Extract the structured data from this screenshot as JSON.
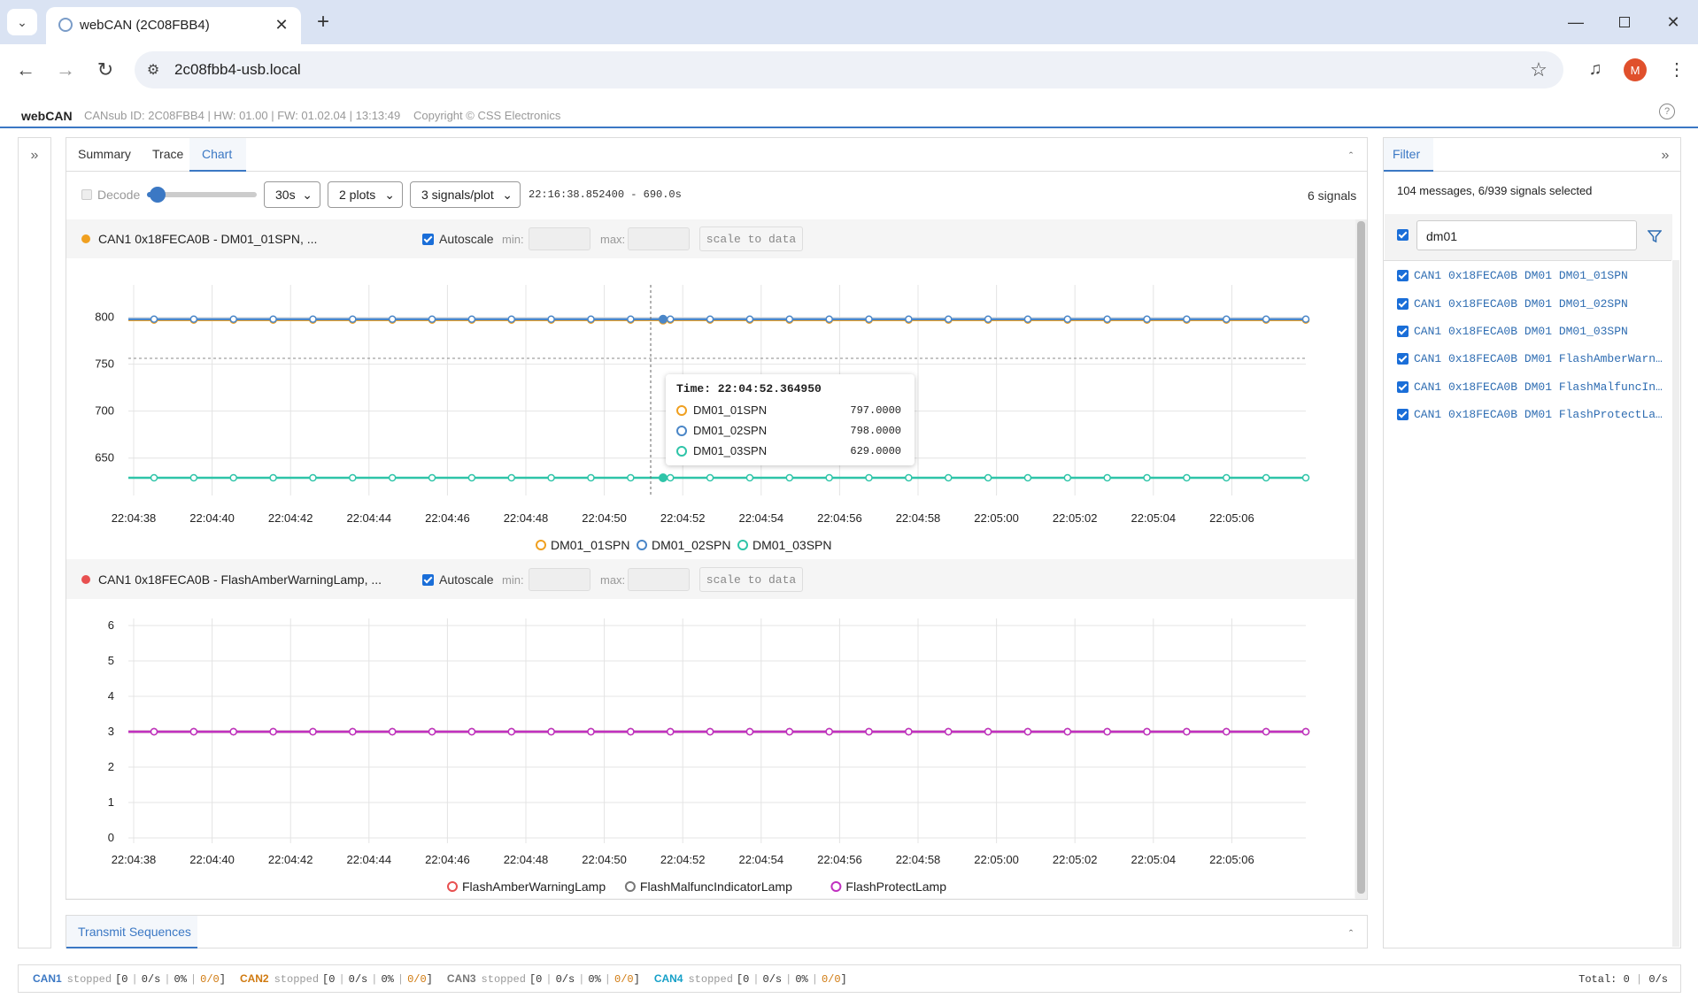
{
  "browser": {
    "tab_title": "webCAN (2C08FBB4)",
    "url": "2c08fbb4-usb.local",
    "profile_initial": "M"
  },
  "app": {
    "name": "webCAN",
    "info": "CANsub ID: 2C08FBB4 | HW: 01.00 | FW: 01.02.04 | 13:13:49",
    "copyright": "Copyright © CSS Electronics"
  },
  "tabs": [
    "Summary",
    "Trace",
    "Chart"
  ],
  "active_tab": "Chart",
  "controls": {
    "decode_label": "Decode",
    "window": "30s",
    "plots": "2 plots",
    "signals_per_plot": "3 signals/plot",
    "timestamp": "22:16:38.852400 - 690.0s",
    "signal_count": "6 signals"
  },
  "plot_controls": {
    "autoscale_label": "Autoscale",
    "min_label": "min:",
    "max_label": "max:",
    "scale_btn": "scale to data"
  },
  "colors": {
    "accent": "#3b78c4",
    "orange": "#f0a020",
    "blue": "#4a86c8",
    "teal": "#2ec4a8",
    "red": "#e85050",
    "gray": "#777777",
    "purple": "#c030c0"
  },
  "chart_data": [
    {
      "type": "line",
      "title": "CAN1 0x18FECA0B - DM01_01SPN, ...",
      "x": [
        "22:04:38",
        "22:04:40",
        "22:04:42",
        "22:04:44",
        "22:04:46",
        "22:04:48",
        "22:04:50",
        "22:04:52",
        "22:04:54",
        "22:04:56",
        "22:04:58",
        "22:05:00",
        "22:05:02",
        "22:05:04",
        "22:05:06"
      ],
      "yticks": [
        800,
        750,
        700,
        650
      ],
      "ylim": [
        629,
        810
      ],
      "series": [
        {
          "name": "DM01_01SPN",
          "value": 797,
          "color": "#f0a020"
        },
        {
          "name": "DM01_02SPN",
          "value": 798,
          "color": "#4a86c8"
        },
        {
          "name": "DM01_03SPN",
          "value": 629,
          "color": "#2ec4a8"
        }
      ],
      "tooltip": {
        "time": "Time: 22:04:52.364950",
        "rows": [
          {
            "name": "DM01_01SPN",
            "value": "797.0000",
            "color": "#f0a020"
          },
          {
            "name": "DM01_02SPN",
            "value": "798.0000",
            "color": "#4a86c8"
          },
          {
            "name": "DM01_03SPN",
            "value": "629.0000",
            "color": "#2ec4a8"
          }
        ]
      }
    },
    {
      "type": "line",
      "title": "CAN1 0x18FECA0B - FlashAmberWarningLamp, ...",
      "x": [
        "22:04:38",
        "22:04:40",
        "22:04:42",
        "22:04:44",
        "22:04:46",
        "22:04:48",
        "22:04:50",
        "22:04:52",
        "22:04:54",
        "22:04:56",
        "22:04:58",
        "22:05:00",
        "22:05:02",
        "22:05:04",
        "22:05:06"
      ],
      "yticks": [
        6,
        5,
        4,
        3,
        2,
        1,
        0
      ],
      "ylim": [
        0,
        6
      ],
      "series": [
        {
          "name": "FlashAmberWarningLamp",
          "value": 3,
          "color": "#e85050"
        },
        {
          "name": "FlashMalfuncIndicatorLamp",
          "value": 3,
          "color": "#777777"
        },
        {
          "name": "FlashProtectLamp",
          "value": 3,
          "color": "#c030c0"
        }
      ]
    }
  ],
  "filter": {
    "tab": "Filter",
    "summary": "104 messages, 6/939 signals selected",
    "query": "dm01",
    "signals": [
      "CAN1 0x18FECA0B DM01 DM01_01SPN",
      "CAN1 0x18FECA0B DM01 DM01_02SPN",
      "CAN1 0x18FECA0B DM01 DM01_03SPN",
      "CAN1 0x18FECA0B DM01 FlashAmberWarn…",
      "CAN1 0x18FECA0B DM01 FlashMalfuncIn…",
      "CAN1 0x18FECA0B DM01 FlashProtectLa…"
    ]
  },
  "transmit": {
    "tab": "Transmit Sequences"
  },
  "status": {
    "channels": [
      {
        "name": "CAN1",
        "state": "stopped",
        "count": "0",
        "rate": "0/s",
        "load": "0%",
        "err": "0/0",
        "color": "#3b78c4"
      },
      {
        "name": "CAN2",
        "state": "stopped",
        "count": "0",
        "rate": "0/s",
        "load": "0%",
        "err": "0/0",
        "color": "#d07a10"
      },
      {
        "name": "CAN3",
        "state": "stopped",
        "count": "0",
        "rate": "0/s",
        "load": "0%",
        "err": "0/0",
        "color": "#777777"
      },
      {
        "name": "CAN4",
        "state": "stopped",
        "count": "0",
        "rate": "0/s",
        "load": "0%",
        "err": "0/0",
        "color": "#16a0c8"
      }
    ],
    "total_label": "Total:",
    "total_count": "0",
    "total_rate": "0/s"
  }
}
